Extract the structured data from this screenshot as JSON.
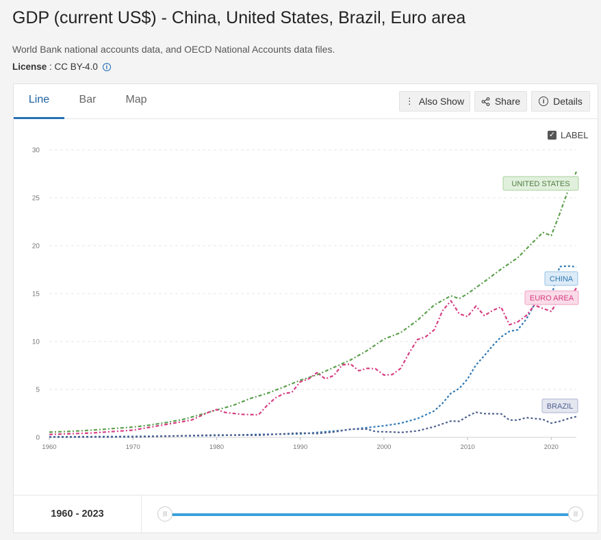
{
  "header": {
    "title": "GDP (current US$) - China, United States, Brazil, Euro area",
    "source": "World Bank national accounts data, and OECD National Accounts data files.",
    "license_label": "License",
    "license_sep": " : ",
    "license_value": "CC BY-4.0",
    "info_glyph": "i"
  },
  "tabs": [
    {
      "label": "Line",
      "active": true
    },
    {
      "label": "Bar",
      "active": false
    },
    {
      "label": "Map",
      "active": false
    }
  ],
  "toolbar": {
    "also_show": "Also Show",
    "share": "Share",
    "details": "Details"
  },
  "label_toggle": {
    "text": "LABEL",
    "checked": true
  },
  "range": {
    "start": "1960",
    "sep": " - ",
    "end": "2023",
    "grip": "|||"
  },
  "chart_data": {
    "type": "line",
    "title": "",
    "xlabel": "",
    "ylabel": "",
    "xlim": [
      1960,
      2023
    ],
    "ylim": [
      0,
      30
    ],
    "x_ticks": [
      1960,
      1970,
      1980,
      1990,
      2000,
      2010,
      2020
    ],
    "y_ticks": [
      0,
      5,
      10,
      15,
      20,
      25,
      30
    ],
    "grid": "horizontal dashed",
    "series": [
      {
        "name": "UNITED STATES",
        "color": "#5a9e4b",
        "label_bg": "#e1f0dc",
        "label_border": "#a9cf9e",
        "points": [
          [
            1960,
            0.54
          ],
          [
            1962,
            0.61
          ],
          [
            1964,
            0.69
          ],
          [
            1966,
            0.81
          ],
          [
            1968,
            0.94
          ],
          [
            1970,
            1.07
          ],
          [
            1972,
            1.28
          ],
          [
            1974,
            1.55
          ],
          [
            1976,
            1.87
          ],
          [
            1978,
            2.35
          ],
          [
            1980,
            2.86
          ],
          [
            1982,
            3.34
          ],
          [
            1984,
            4.04
          ],
          [
            1986,
            4.58
          ],
          [
            1988,
            5.24
          ],
          [
            1990,
            5.96
          ],
          [
            1992,
            6.52
          ],
          [
            1994,
            7.29
          ],
          [
            1996,
            8.07
          ],
          [
            1998,
            9.06
          ],
          [
            2000,
            10.25
          ],
          [
            2002,
            10.93
          ],
          [
            2004,
            12.21
          ],
          [
            2006,
            13.81
          ],
          [
            2008,
            14.77
          ],
          [
            2009,
            14.48
          ],
          [
            2010,
            14.99
          ],
          [
            2012,
            16.25
          ],
          [
            2014,
            17.55
          ],
          [
            2016,
            18.75
          ],
          [
            2018,
            20.53
          ],
          [
            2019,
            21.38
          ],
          [
            2020,
            21.06
          ],
          [
            2021,
            23.32
          ],
          [
            2022,
            25.74
          ],
          [
            2023,
            27.72
          ]
        ]
      },
      {
        "name": "CHINA",
        "color": "#2d78b4",
        "label_bg": "#dcebf7",
        "label_border": "#96c1e4",
        "points": [
          [
            1960,
            0.06
          ],
          [
            1970,
            0.09
          ],
          [
            1980,
            0.19
          ],
          [
            1985,
            0.31
          ],
          [
            1990,
            0.36
          ],
          [
            1995,
            0.73
          ],
          [
            2000,
            1.21
          ],
          [
            2002,
            1.47
          ],
          [
            2004,
            1.96
          ],
          [
            2006,
            2.75
          ],
          [
            2007,
            3.55
          ],
          [
            2008,
            4.59
          ],
          [
            2009,
            5.1
          ],
          [
            2010,
            6.09
          ],
          [
            2011,
            7.55
          ],
          [
            2012,
            8.53
          ],
          [
            2013,
            9.57
          ],
          [
            2014,
            10.48
          ],
          [
            2015,
            11.06
          ],
          [
            2016,
            11.23
          ],
          [
            2017,
            12.31
          ],
          [
            2018,
            13.89
          ],
          [
            2019,
            14.28
          ],
          [
            2020,
            14.69
          ],
          [
            2021,
            17.82
          ],
          [
            2022,
            17.88
          ],
          [
            2023,
            17.79
          ]
        ]
      },
      {
        "name": "EURO AREA",
        "color": "#d63c82",
        "label_bg": "#fadbe8",
        "label_border": "#eea2c3",
        "points": [
          [
            1960,
            0.3
          ],
          [
            1965,
            0.45
          ],
          [
            1970,
            0.75
          ],
          [
            1973,
            1.2
          ],
          [
            1975,
            1.5
          ],
          [
            1977,
            1.8
          ],
          [
            1979,
            2.6
          ],
          [
            1980,
            2.9
          ],
          [
            1981,
            2.6
          ],
          [
            1983,
            2.4
          ],
          [
            1985,
            2.35
          ],
          [
            1986,
            3.3
          ],
          [
            1987,
            4.1
          ],
          [
            1988,
            4.55
          ],
          [
            1989,
            4.7
          ],
          [
            1990,
            5.8
          ],
          [
            1991,
            6.1
          ],
          [
            1992,
            6.75
          ],
          [
            1993,
            6.1
          ],
          [
            1994,
            6.45
          ],
          [
            1995,
            7.55
          ],
          [
            1996,
            7.65
          ],
          [
            1997,
            6.95
          ],
          [
            1998,
            7.2
          ],
          [
            1999,
            7.15
          ],
          [
            2000,
            6.5
          ],
          [
            2001,
            6.55
          ],
          [
            2002,
            7.2
          ],
          [
            2003,
            8.8
          ],
          [
            2004,
            10.2
          ],
          [
            2005,
            10.5
          ],
          [
            2006,
            11.2
          ],
          [
            2007,
            13.2
          ],
          [
            2008,
            14.25
          ],
          [
            2009,
            12.9
          ],
          [
            2010,
            12.6
          ],
          [
            2011,
            13.7
          ],
          [
            2012,
            12.7
          ],
          [
            2013,
            13.25
          ],
          [
            2014,
            13.6
          ],
          [
            2015,
            11.75
          ],
          [
            2016,
            12.05
          ],
          [
            2017,
            12.7
          ],
          [
            2018,
            13.8
          ],
          [
            2019,
            13.45
          ],
          [
            2020,
            13.15
          ],
          [
            2021,
            14.55
          ],
          [
            2022,
            14.15
          ],
          [
            2023,
            15.6
          ]
        ]
      },
      {
        "name": "BRAZIL",
        "color": "#4e5f8e",
        "label_bg": "#e4e6f0",
        "label_border": "#aab2cf",
        "points": [
          [
            1960,
            0.02
          ],
          [
            1970,
            0.04
          ],
          [
            1980,
            0.24
          ],
          [
            1985,
            0.22
          ],
          [
            1990,
            0.46
          ],
          [
            1992,
            0.39
          ],
          [
            1994,
            0.56
          ],
          [
            1996,
            0.85
          ],
          [
            1998,
            0.86
          ],
          [
            1999,
            0.6
          ],
          [
            2001,
            0.56
          ],
          [
            2002,
            0.51
          ],
          [
            2004,
            0.67
          ],
          [
            2006,
            1.11
          ],
          [
            2008,
            1.7
          ],
          [
            2009,
            1.67
          ],
          [
            2010,
            2.21
          ],
          [
            2011,
            2.62
          ],
          [
            2012,
            2.47
          ],
          [
            2014,
            2.46
          ],
          [
            2015,
            1.8
          ],
          [
            2016,
            1.8
          ],
          [
            2017,
            2.06
          ],
          [
            2019,
            1.87
          ],
          [
            2020,
            1.48
          ],
          [
            2021,
            1.67
          ],
          [
            2022,
            1.95
          ],
          [
            2023,
            2.17
          ]
        ]
      }
    ]
  }
}
